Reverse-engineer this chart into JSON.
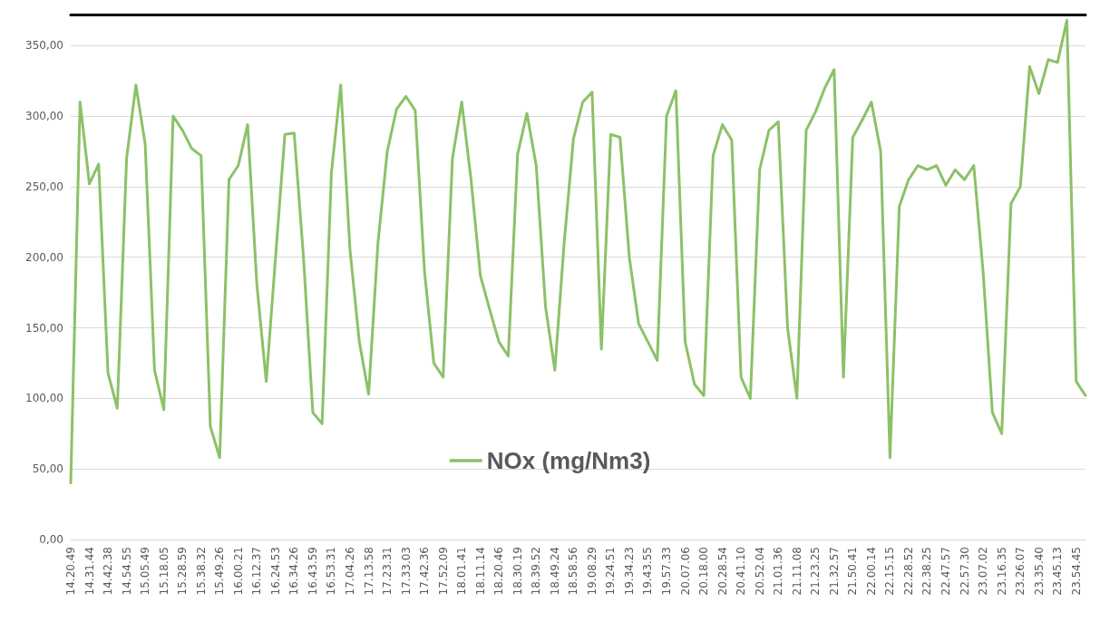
{
  "chart_data": {
    "type": "line",
    "categories": [
      "14.20.49",
      null,
      "14.31.44",
      null,
      "14.42.38",
      null,
      "14.54.55",
      null,
      "15.05.49",
      null,
      "15.18.05",
      null,
      "15.28.59",
      null,
      "15.38.32",
      null,
      "15.49.26",
      null,
      "16.00.21",
      null,
      "16.12.37",
      null,
      "16.24.53",
      null,
      "16.34.26",
      null,
      "16.43.59",
      null,
      "16.53.31",
      null,
      "17.04.26",
      null,
      "17.13.58",
      null,
      "17.23.31",
      null,
      "17.33.03",
      null,
      "17.42.36",
      null,
      "17.52.09",
      null,
      "18.01.41",
      null,
      "18.11.14",
      null,
      "18.20.46",
      null,
      "18.30.19",
      null,
      "18.39.52",
      null,
      "18.49.24",
      null,
      "18.58.56",
      null,
      "19.08.29",
      null,
      "19.24.51",
      null,
      "19.34.23",
      null,
      "19.43.55",
      null,
      "19.57.33",
      null,
      "20.07.06",
      null,
      "20.18.00",
      null,
      "20.28.54",
      null,
      "20.41.10",
      null,
      "20.52.04",
      null,
      "21.01.36",
      null,
      "21.11.08",
      null,
      "21.23.25",
      null,
      "21.32.57",
      null,
      "21.50.41",
      null,
      "22.00.14",
      null,
      "22.15.15",
      null,
      "22.28.52",
      null,
      "22.38.25",
      null,
      "22.47.57",
      null,
      "22.57.30",
      null,
      "23.07.02",
      null,
      "23.16.35",
      null,
      "23.26.07",
      null,
      "23.35.40",
      null,
      "23.45.13",
      null,
      "23.54.45",
      null
    ],
    "series": [
      {
        "name": "NOx (mg/Nm3)",
        "color": "#8cc168",
        "values": [
          40,
          310,
          252,
          266,
          118,
          93,
          270,
          322,
          280,
          120,
          92,
          300,
          290,
          277,
          272,
          80,
          58,
          255,
          265,
          294,
          180,
          112,
          200,
          287,
          288,
          200,
          90,
          82,
          260,
          322,
          205,
          140,
          103,
          210,
          275,
          305,
          314,
          304,
          190,
          125,
          115,
          270,
          310,
          255,
          187,
          163,
          140,
          130,
          273,
          302,
          265,
          165,
          120,
          210,
          284,
          310,
          317,
          135,
          287,
          285,
          200,
          153,
          140,
          127,
          300,
          318,
          140,
          110,
          102,
          272,
          294,
          283,
          115,
          100,
          262,
          290,
          296,
          150,
          100,
          290,
          303,
          320,
          333,
          115,
          285,
          297,
          310,
          275,
          58,
          236,
          255,
          265,
          262,
          265,
          251,
          262,
          255,
          265,
          190,
          90,
          75,
          238,
          250,
          335,
          316,
          340,
          338,
          368,
          112,
          102
        ]
      }
    ],
    "ylim": [
      0,
      372
    ],
    "yticks": [
      {
        "value": 0,
        "label": "0,00"
      },
      {
        "value": 50,
        "label": "50,00"
      },
      {
        "value": 100,
        "label": "100,00"
      },
      {
        "value": 150,
        "label": "150,00"
      },
      {
        "value": 200,
        "label": "200,00"
      },
      {
        "value": 250,
        "label": "250,00"
      },
      {
        "value": 300,
        "label": "300,00"
      },
      {
        "value": 350,
        "label": "350,00"
      }
    ],
    "grid": "y",
    "legend": "bottom",
    "marker": "none",
    "line_style": "solid"
  }
}
